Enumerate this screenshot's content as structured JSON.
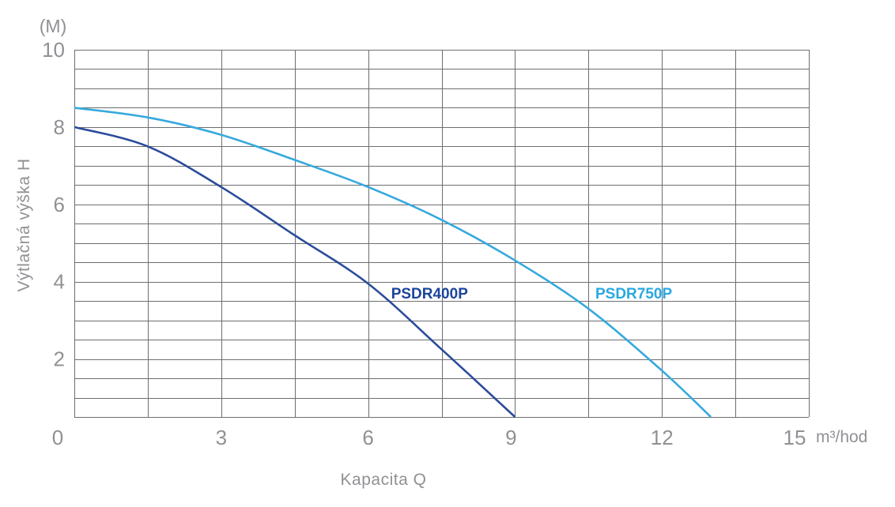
{
  "chart_data": {
    "type": "line",
    "xlabel": "Kapacita Q",
    "ylabel": "Výtlačná výška H",
    "y_unit_label": "(M)",
    "x_unit_label": "m³/hod",
    "xlim": [
      0,
      15
    ],
    "ylim": [
      0.5,
      10
    ],
    "x_ticks": [
      0,
      3,
      6,
      9,
      12,
      15
    ],
    "y_ticks": [
      10,
      8,
      6,
      4,
      2
    ],
    "x_grid_step": 1.5,
    "y_grid_step": 0.5,
    "grid": true,
    "legend_position": "inline-labels",
    "colors": {
      "grid": "#6d6e71",
      "axis_text": "#8f9194",
      "background": "#ffffff"
    },
    "series": [
      {
        "name": "PSDR400P",
        "color": "#2b4c9b",
        "label_color": "#1b459c",
        "label_anchor": {
          "x": 6.47,
          "y": 3.56
        },
        "points": [
          [
            0,
            8.0
          ],
          [
            1.5,
            7.5
          ],
          [
            3,
            6.45
          ],
          [
            4.5,
            5.2
          ],
          [
            6,
            3.95
          ],
          [
            7.5,
            2.25
          ],
          [
            9,
            0.5
          ]
        ]
      },
      {
        "name": "PSDR750P",
        "color": "#36a9dd",
        "label_color": "#29a8e1",
        "label_anchor": {
          "x": 10.64,
          "y": 3.56
        },
        "points": [
          [
            0,
            8.5
          ],
          [
            1.5,
            8.25
          ],
          [
            3,
            7.8
          ],
          [
            4.5,
            7.15
          ],
          [
            6,
            6.45
          ],
          [
            7.5,
            5.6
          ],
          [
            9,
            4.55
          ],
          [
            10.5,
            3.3
          ],
          [
            12,
            1.7
          ],
          [
            13,
            0.5
          ]
        ]
      }
    ]
  }
}
